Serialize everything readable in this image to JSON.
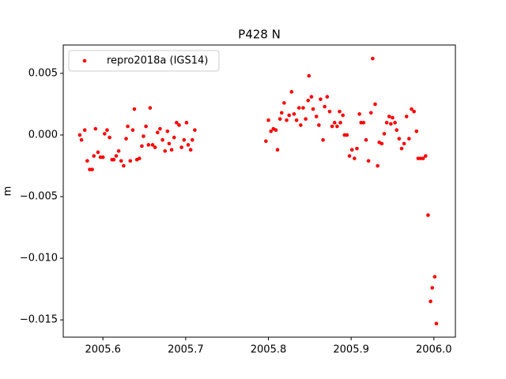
{
  "chart_data": {
    "type": "scatter",
    "title": "P428 N",
    "y_label": "m",
    "x": [
      2005.572,
      2005.574,
      2005.578,
      2005.581,
      2005.584,
      2005.587,
      2005.589,
      2005.591,
      2005.594,
      2005.597,
      2005.6,
      2005.602,
      2005.605,
      2005.608,
      2005.611,
      2005.613,
      2005.616,
      2005.619,
      2005.622,
      2005.625,
      2005.628,
      2005.63,
      2005.633,
      2005.636,
      2005.638,
      2005.641,
      2005.644,
      2005.647,
      2005.649,
      2005.652,
      2005.655,
      2005.657,
      2005.66,
      2005.663,
      2005.666,
      2005.669,
      2005.672,
      2005.675,
      2005.678,
      2005.68,
      2005.683,
      2005.686,
      2005.689,
      2005.692,
      2005.695,
      2005.698,
      2005.701,
      2005.703,
      2005.706,
      2005.708,
      2005.711,
      2005.797,
      2005.8,
      2005.803,
      2005.806,
      2005.809,
      2005.811,
      2005.814,
      2005.816,
      2005.819,
      2005.822,
      2005.825,
      2005.828,
      2005.831,
      2005.834,
      2005.837,
      2005.839,
      2005.842,
      2005.845,
      2005.848,
      2005.849,
      2005.852,
      2005.854,
      2005.858,
      2005.861,
      2005.863,
      2005.866,
      2005.868,
      2005.871,
      2005.874,
      2005.877,
      2005.88,
      2005.883,
      2005.886,
      2005.887,
      2005.89,
      2005.892,
      2005.895,
      2005.898,
      2005.901,
      2005.904,
      2005.907,
      2005.91,
      2005.912,
      2005.915,
      2005.918,
      2005.921,
      2005.924,
      2005.926,
      2005.929,
      2005.932,
      2005.934,
      2005.937,
      2005.94,
      2005.943,
      2005.946,
      2005.948,
      2005.95,
      2005.953,
      2005.955,
      2005.958,
      2005.961,
      2005.964,
      2005.967,
      2005.97,
      2005.973,
      2005.976,
      2005.979,
      2005.981,
      2005.984,
      2005.987,
      2005.99,
      2005.993,
      2005.996,
      2005.998,
      2006.001,
      2006.003
    ],
    "series": [
      {
        "name": "repro2018a (IGS14)",
        "color": "#ff0000",
        "values": [
          0.0,
          -0.0004,
          0.0004,
          -0.0021,
          -0.0028,
          -0.0028,
          -0.0017,
          0.0005,
          -0.0014,
          -0.0018,
          -0.0018,
          0.0001,
          0.0004,
          -0.0002,
          -0.002,
          -0.002,
          -0.0017,
          -0.0013,
          -0.0021,
          -0.0025,
          -0.0003,
          0.0007,
          -0.0021,
          0.0004,
          0.0021,
          -0.002,
          -0.0019,
          -0.0009,
          -0.0001,
          0.0007,
          -0.0008,
          0.0022,
          -0.0008,
          -0.001,
          0.0002,
          0.0005,
          -0.0004,
          -0.0013,
          0.0003,
          -0.0007,
          -0.0012,
          -0.0002,
          0.001,
          0.0008,
          -0.001,
          -0.0004,
          0.001,
          -0.0008,
          -0.0012,
          -0.0004,
          0.0004,
          -0.0005,
          0.0012,
          0.0003,
          0.0005,
          0.0004,
          -0.0012,
          0.0013,
          0.0018,
          0.0026,
          0.0012,
          0.0016,
          0.0035,
          0.0017,
          0.0012,
          0.0022,
          0.0008,
          0.0022,
          0.0013,
          0.0028,
          0.0048,
          0.0031,
          0.0021,
          0.0015,
          0.0008,
          0.0029,
          -0.0004,
          0.0023,
          0.0031,
          0.0019,
          0.0007,
          0.001,
          0.0007,
          0.0019,
          0.001,
          0.0016,
          0.0,
          0.0,
          -0.0017,
          -0.0012,
          -0.0019,
          -0.0011,
          0.0017,
          0.001,
          0.001,
          -0.0004,
          -0.0021,
          0.0018,
          0.0062,
          0.0025,
          -0.0025,
          -0.0006,
          -0.0007,
          0.0001,
          0.001,
          0.0015,
          0.0009,
          0.0014,
          0.001,
          0.0004,
          -0.0003,
          -0.0011,
          -0.0007,
          0.0015,
          -0.0003,
          0.0021,
          0.0019,
          0.0003,
          -0.0019,
          -0.0019,
          -0.0019,
          -0.0017,
          -0.0065,
          -0.0135,
          -0.0124,
          -0.0115,
          -0.0153
        ]
      }
    ],
    "xlim": [
      2005.552,
      2006.026
    ],
    "ylim": [
      -0.0164,
      0.0073
    ],
    "xticks": [
      2005.6,
      2005.7,
      2005.8,
      2005.9,
      {
        "value": 2006.0,
        "label": "2006.0"
      }
    ],
    "yticks": [
      {
        "value": -0.015,
        "label": "−0.015"
      },
      {
        "value": -0.01,
        "label": "−0.010"
      },
      {
        "value": -0.005,
        "label": "−0.005"
      },
      {
        "value": 0,
        "label": "0.000"
      },
      {
        "value": 0.005,
        "label": "0.005"
      }
    ],
    "legend": "upper left",
    "grid": false
  }
}
